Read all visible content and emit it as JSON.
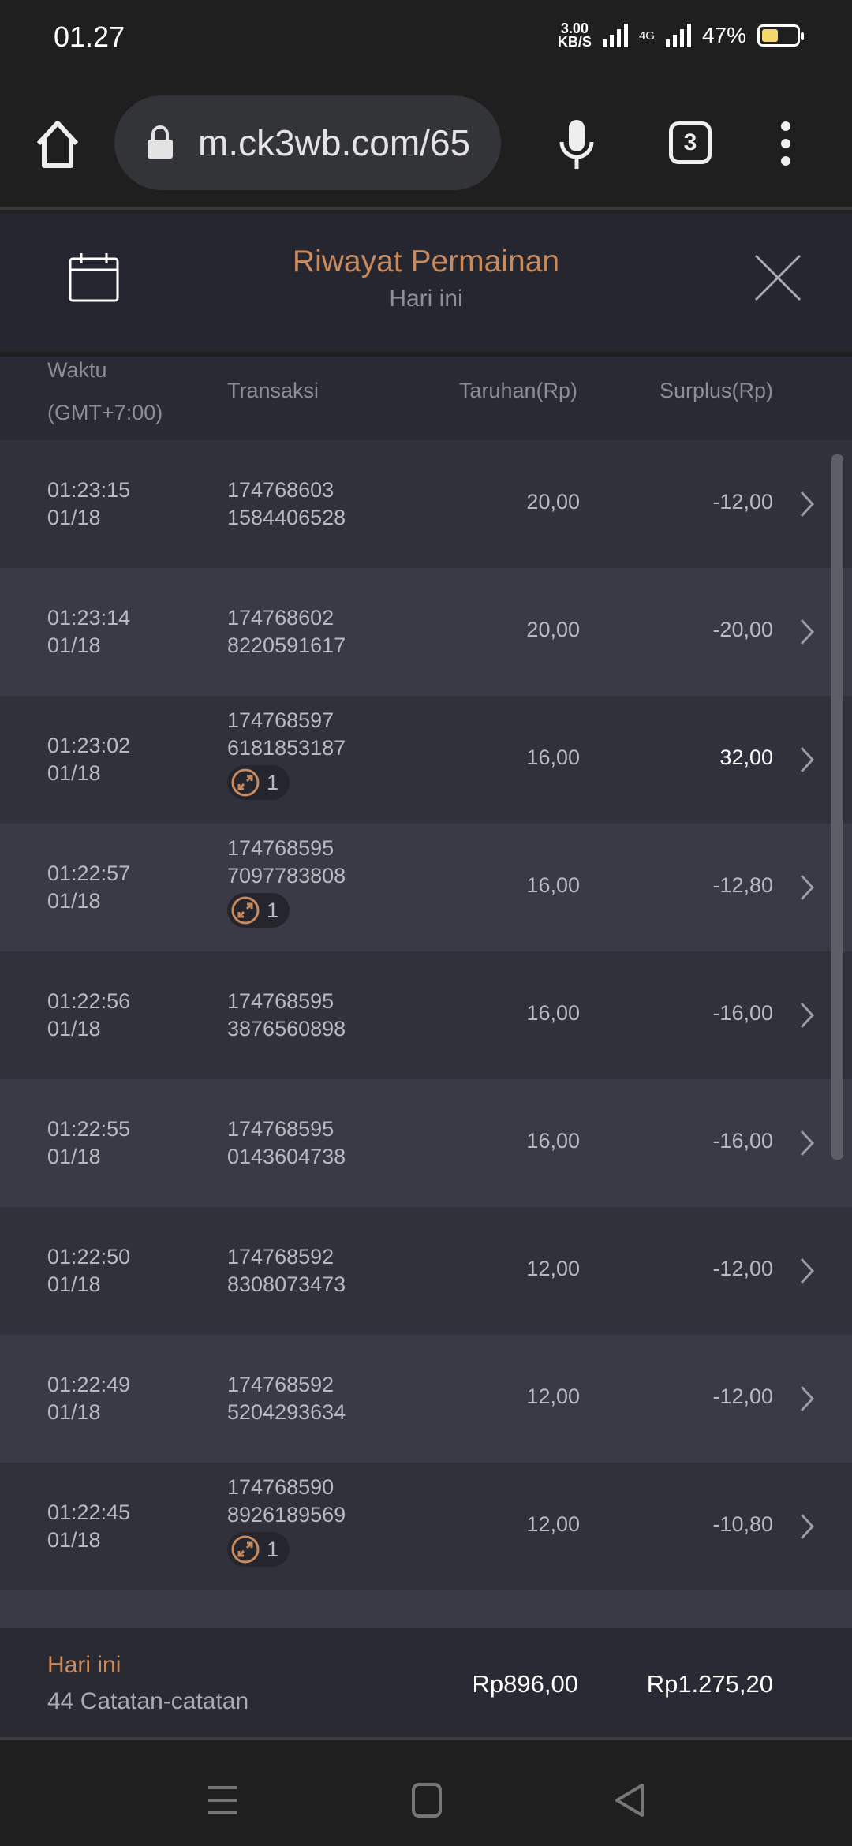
{
  "status_bar": {
    "time": "01.27",
    "speed_value": "3.00",
    "speed_unit": "KB/S",
    "network": "4G",
    "battery": "47%",
    "battery_level": 0.47
  },
  "browser": {
    "url": "m.ck3wb.com/65",
    "tab_count": "3"
  },
  "header": {
    "title": "Riwayat Permainan",
    "subtitle": "Hari ini"
  },
  "columns": {
    "time": "Waktu",
    "time_zone": "(GMT+7:00)",
    "transaction": "Transaksi",
    "bet": "Taruhan(Rp)",
    "surplus": "Surplus(Rp)"
  },
  "rows": [
    {
      "time": "01:23:15",
      "date": "01/18",
      "tx1": "174768603",
      "tx2": "1584406528",
      "badge": null,
      "bet": "20,00",
      "surplus": "-12,00"
    },
    {
      "time": "01:23:14",
      "date": "01/18",
      "tx1": "174768602",
      "tx2": "8220591617",
      "badge": null,
      "bet": "20,00",
      "surplus": "-20,00"
    },
    {
      "time": "01:23:02",
      "date": "01/18",
      "tx1": "174768597",
      "tx2": "6181853187",
      "badge": "1",
      "bet": "16,00",
      "surplus": "32,00"
    },
    {
      "time": "01:22:57",
      "date": "01/18",
      "tx1": "174768595",
      "tx2": "7097783808",
      "badge": "1",
      "bet": "16,00",
      "surplus": "-12,80"
    },
    {
      "time": "01:22:56",
      "date": "01/18",
      "tx1": "174768595",
      "tx2": "3876560898",
      "badge": null,
      "bet": "16,00",
      "surplus": "-16,00"
    },
    {
      "time": "01:22:55",
      "date": "01/18",
      "tx1": "174768595",
      "tx2": "0143604738",
      "badge": null,
      "bet": "16,00",
      "surplus": "-16,00"
    },
    {
      "time": "01:22:50",
      "date": "01/18",
      "tx1": "174768592",
      "tx2": "8308073473",
      "badge": null,
      "bet": "12,00",
      "surplus": "-12,00"
    },
    {
      "time": "01:22:49",
      "date": "01/18",
      "tx1": "174768592",
      "tx2": "5204293634",
      "badge": null,
      "bet": "12,00",
      "surplus": "-12,00"
    },
    {
      "time": "01:22:45",
      "date": "01/18",
      "tx1": "174768590",
      "tx2": "8926189569",
      "badge": "1",
      "bet": "12,00",
      "surplus": "-10,80"
    }
  ],
  "footer": {
    "label": "Hari ini",
    "count": "44 Catatan-catatan",
    "total_bet": "Rp896,00",
    "total_surplus": "Rp1.275,20"
  },
  "colors": {
    "accent": "#c98a5e",
    "background": "#30313b",
    "row_alt": "#393a45"
  }
}
